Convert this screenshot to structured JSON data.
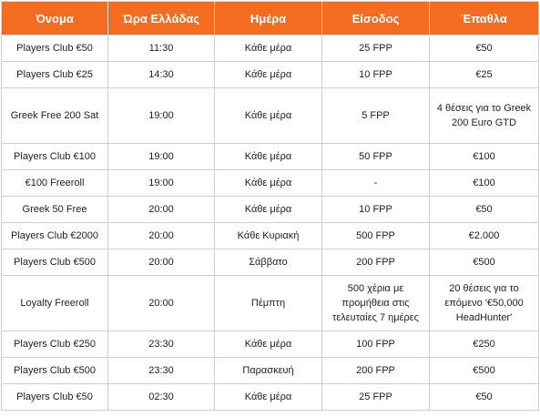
{
  "table": {
    "headers": [
      "Όνομα",
      "Ώρα Ελλάδας",
      "Ημέρα",
      "Είσοδος",
      "Έπαθλα"
    ],
    "rows": [
      [
        "Players Club €50",
        "11:30",
        "Κάθε μέρα",
        "25 FPP",
        "€50"
      ],
      [
        "Players Club €25",
        "14:30",
        "Κάθε μέρα",
        "10 FPP",
        "€25"
      ],
      [
        "Greek Free 200 Sat",
        "19:00",
        "Κάθε μέρα",
        "5 FPP",
        "4 θέσεις για το Greek 200 Euro GTD"
      ],
      [
        "Players Club €100",
        "19:00",
        "Κάθε μέρα",
        "50 FPP",
        "€100"
      ],
      [
        "€100 Freeroll",
        "19:00",
        "Κάθε μέρα",
        "-",
        "€100"
      ],
      [
        "Greek 50 Free",
        "20:00",
        "Κάθε μέρα",
        "10 FPP",
        "€50"
      ],
      [
        "Players Club €2000",
        "20:00",
        "Κάθε Κυριακή",
        "500 FPP",
        "€2.000"
      ],
      [
        "Players Club €500",
        "20:00",
        "Σάββατο",
        "200 FPP",
        "€500"
      ],
      [
        "Loyalty Freeroll",
        "20:00",
        "Πέμπτη",
        "500 χέρια με προμήθεια στις τελευταίες 7 ημέρες",
        "20 θέσεις για το επόμενο '€50,000 HeadHunter'"
      ],
      [
        "Players Club €250",
        "23:30",
        "Κάθε μέρα",
        "100 FPP",
        "€250"
      ],
      [
        "Players Club €500",
        "23:30",
        "Παρασκευή",
        "200 FPP",
        "€500"
      ],
      [
        "Players Club €50",
        "02:30",
        "Κάθε μέρα",
        "25 FPP",
        "€50"
      ]
    ]
  },
  "colors": {
    "header_bg": "#f36c22",
    "header_text": "#ffffff",
    "grid": "#cfcfcf"
  }
}
